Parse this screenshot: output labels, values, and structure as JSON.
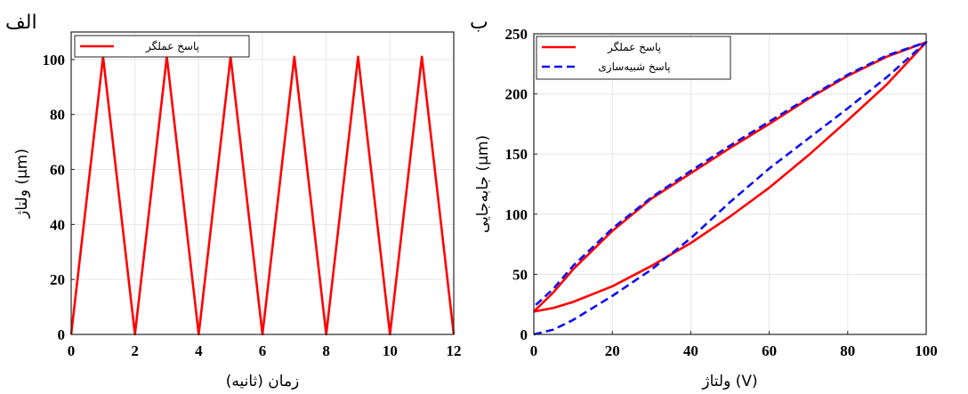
{
  "chart_data": [
    {
      "type": "line",
      "panel_label": "الف",
      "xlabel": "زمان (ثانیه)",
      "ylabel": "ولتاژ (μm)",
      "xlim": [
        0,
        12
      ],
      "ylim": [
        0,
        110
      ],
      "xticks": [
        "0",
        "2",
        "4",
        "6",
        "8",
        "10",
        "12"
      ],
      "yticks": [
        "0",
        "20",
        "40",
        "60",
        "80",
        "100"
      ],
      "grid": true,
      "legend_position": "top-left",
      "series": [
        {
          "name": "پاسخ عملگر",
          "color": "#ff0000",
          "dash": "solid",
          "x": [
            0,
            1,
            2,
            3,
            4,
            5,
            6,
            7,
            8,
            9,
            10,
            11,
            12
          ],
          "y": [
            0,
            101,
            0,
            101,
            0,
            101,
            0,
            101,
            0,
            101,
            0,
            101,
            0
          ]
        }
      ]
    },
    {
      "type": "line",
      "panel_label": "ب",
      "xlabel": "ولتاژ (V)",
      "ylabel": "جابه‌جایی (μm)",
      "xlim": [
        0,
        100
      ],
      "ylim": [
        0,
        250
      ],
      "xticks": [
        "0",
        "20",
        "40",
        "60",
        "80",
        "100"
      ],
      "yticks": [
        "0",
        "50",
        "100",
        "150",
        "200",
        "250"
      ],
      "grid": true,
      "legend_position": "top-left",
      "series": [
        {
          "name": "پاسخ عملگر",
          "color": "#ff0000",
          "dash": "solid",
          "x": [
            0,
            5,
            10,
            20,
            30,
            40,
            50,
            60,
            70,
            80,
            90,
            100,
            90,
            80,
            70,
            60,
            50,
            40,
            30,
            20,
            10,
            5,
            0
          ],
          "y": [
            19,
            22,
            27,
            40,
            57,
            76,
            98,
            122,
            149,
            178,
            208,
            243,
            231,
            215,
            196,
            175,
            155,
            134,
            113,
            86,
            54,
            35,
            19
          ]
        },
        {
          "name": "پاسخ شبیه‌سازی",
          "color": "#1010ee",
          "dash": "dashed",
          "x": [
            0,
            5,
            10,
            20,
            30,
            40,
            50,
            60,
            70,
            80,
            90,
            100,
            90,
            80,
            70,
            60,
            50,
            40,
            30,
            20,
            10,
            5,
            0
          ],
          "y": [
            0,
            4,
            12,
            32,
            54,
            80,
            110,
            138,
            163,
            188,
            214,
            243,
            232,
            216,
            197,
            177,
            157,
            136,
            114,
            88,
            57,
            38,
            23
          ]
        }
      ]
    }
  ]
}
